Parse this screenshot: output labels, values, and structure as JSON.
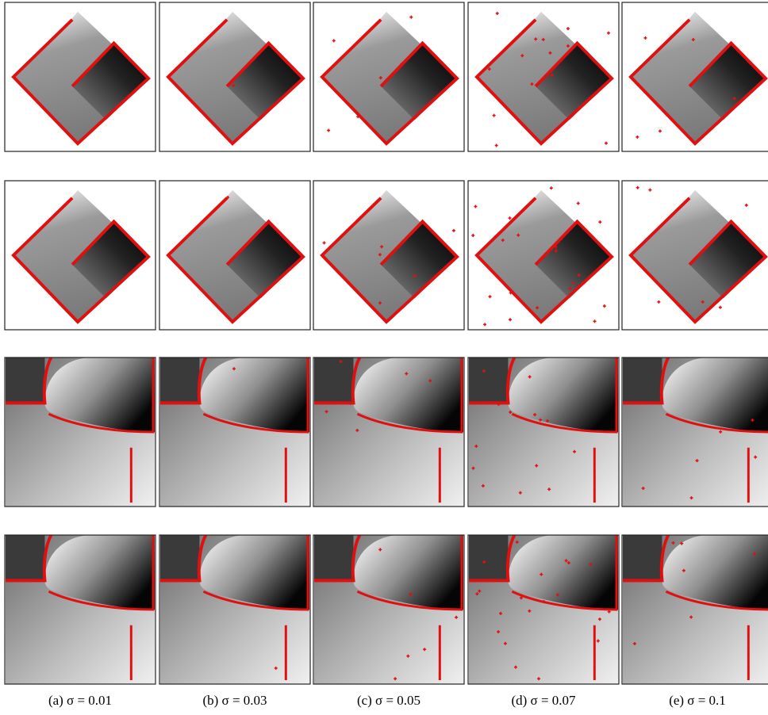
{
  "captions": [
    "(a) σ = 0.01",
    "(b) σ = 0.03",
    "(c) σ = 0.05",
    "(d) σ = 0.07",
    "(e) σ = 0.1"
  ]
}
